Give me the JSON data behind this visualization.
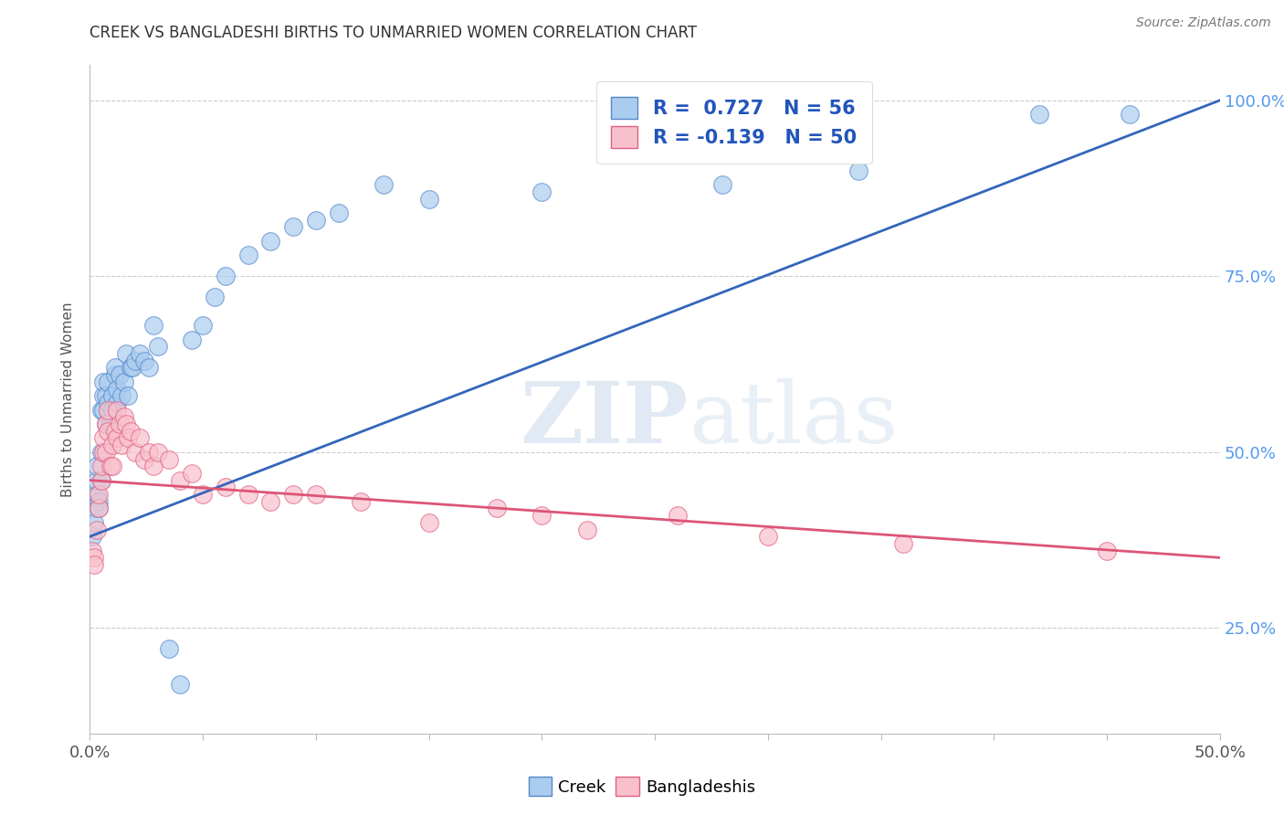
{
  "title": "CREEK VS BANGLADESHI BIRTHS TO UNMARRIED WOMEN CORRELATION CHART",
  "source": "Source: ZipAtlas.com",
  "ylabel": "Births to Unmarried Women",
  "legend_creek": "R =  0.727   N = 56",
  "legend_bangladeshi": "R = -0.139   N = 50",
  "creek_color": "#AACCEE",
  "creek_edge_color": "#5588CC",
  "bangladeshi_color": "#F8C0CC",
  "bangladeshi_edge_color": "#E06080",
  "creek_line_color": "#3366BB",
  "bangladeshi_line_color": "#DD5577",
  "legend_creek_fill": "#AACCEE",
  "legend_bangladeshi_fill": "#F8C0CC",
  "background_color": "#FFFFFF",
  "grid_color": "#CCCCCC",
  "title_color": "#333333",
  "source_color": "#777777",
  "right_tick_color": "#5599EE",
  "bottom_tick_color": "#555555",
  "creek_scatter_x": [
    0.001,
    0.002,
    0.002,
    0.003,
    0.003,
    0.003,
    0.004,
    0.004,
    0.005,
    0.005,
    0.005,
    0.006,
    0.006,
    0.006,
    0.007,
    0.007,
    0.008,
    0.008,
    0.009,
    0.01,
    0.01,
    0.011,
    0.011,
    0.012,
    0.012,
    0.013,
    0.014,
    0.015,
    0.016,
    0.017,
    0.018,
    0.019,
    0.02,
    0.022,
    0.024,
    0.026,
    0.028,
    0.03,
    0.035,
    0.04,
    0.045,
    0.05,
    0.055,
    0.06,
    0.07,
    0.08,
    0.09,
    0.1,
    0.11,
    0.13,
    0.15,
    0.2,
    0.28,
    0.34,
    0.42,
    0.46
  ],
  "creek_scatter_y": [
    0.38,
    0.42,
    0.4,
    0.44,
    0.46,
    0.48,
    0.43,
    0.42,
    0.46,
    0.5,
    0.56,
    0.58,
    0.56,
    0.6,
    0.54,
    0.58,
    0.57,
    0.6,
    0.54,
    0.56,
    0.58,
    0.61,
    0.62,
    0.57,
    0.59,
    0.61,
    0.58,
    0.6,
    0.64,
    0.58,
    0.62,
    0.62,
    0.63,
    0.64,
    0.63,
    0.62,
    0.68,
    0.65,
    0.22,
    0.17,
    0.66,
    0.68,
    0.72,
    0.75,
    0.78,
    0.8,
    0.82,
    0.83,
    0.84,
    0.88,
    0.86,
    0.87,
    0.88,
    0.9,
    0.98,
    0.98
  ],
  "bangladeshi_scatter_x": [
    0.001,
    0.002,
    0.002,
    0.003,
    0.004,
    0.004,
    0.005,
    0.005,
    0.006,
    0.006,
    0.007,
    0.007,
    0.008,
    0.008,
    0.009,
    0.01,
    0.01,
    0.011,
    0.012,
    0.012,
    0.013,
    0.014,
    0.015,
    0.016,
    0.017,
    0.018,
    0.02,
    0.022,
    0.024,
    0.026,
    0.028,
    0.03,
    0.035,
    0.04,
    0.045,
    0.05,
    0.06,
    0.07,
    0.08,
    0.09,
    0.1,
    0.12,
    0.15,
    0.18,
    0.2,
    0.22,
    0.26,
    0.3,
    0.36,
    0.45
  ],
  "bangladeshi_scatter_y": [
    0.36,
    0.35,
    0.34,
    0.39,
    0.42,
    0.44,
    0.46,
    0.48,
    0.5,
    0.52,
    0.5,
    0.54,
    0.53,
    0.56,
    0.48,
    0.48,
    0.51,
    0.53,
    0.52,
    0.56,
    0.54,
    0.51,
    0.55,
    0.54,
    0.52,
    0.53,
    0.5,
    0.52,
    0.49,
    0.5,
    0.48,
    0.5,
    0.49,
    0.46,
    0.47,
    0.44,
    0.45,
    0.44,
    0.43,
    0.44,
    0.44,
    0.43,
    0.4,
    0.42,
    0.41,
    0.39,
    0.41,
    0.38,
    0.37,
    0.36
  ],
  "creek_line_x": [
    0.0,
    0.5
  ],
  "creek_line_y": [
    0.38,
    1.0
  ],
  "bangladeshi_line_x": [
    0.0,
    0.5
  ],
  "bangladeshi_line_y": [
    0.46,
    0.35
  ],
  "xmin": 0.0,
  "xmax": 0.5,
  "ymin": 0.1,
  "ymax": 1.05,
  "ytick_vals": [
    0.25,
    0.5,
    0.75,
    1.0
  ],
  "xtick_vals": [
    0.0,
    0.05,
    0.1,
    0.15,
    0.2,
    0.25,
    0.3,
    0.35,
    0.4,
    0.45,
    0.5
  ]
}
